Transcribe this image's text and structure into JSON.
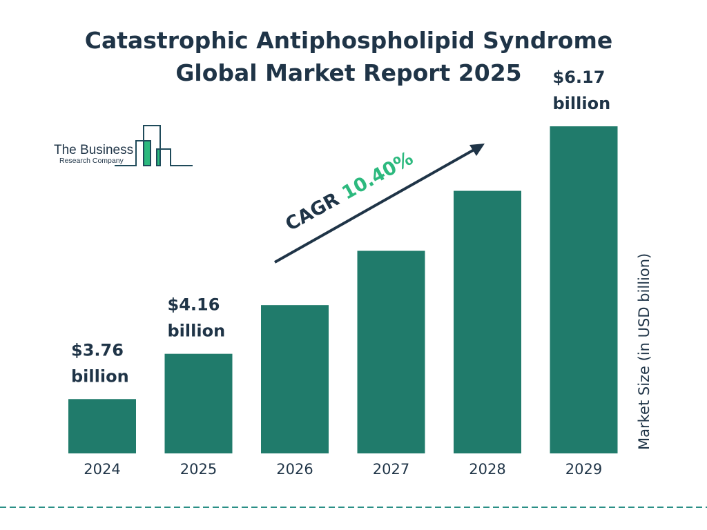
{
  "chart_data": {
    "type": "bar",
    "title": "Catastrophic Antiphospholipid Syndrome Global Market Report 2025",
    "title_lines": [
      "Catastrophic Antiphospholipid Syndrome",
      "Global Market Report 2025"
    ],
    "categories": [
      "2024",
      "2025",
      "2026",
      "2027",
      "2028",
      "2029"
    ],
    "values": [
      3.76,
      4.16,
      4.59,
      5.07,
      5.6,
      6.17
    ],
    "data_labels": [
      {
        "index": 0,
        "value": "$3.76",
        "unit": "billion"
      },
      {
        "index": 1,
        "value": "$4.16",
        "unit": "billion"
      },
      {
        "index": 5,
        "value": "$6.17",
        "unit": "billion"
      }
    ],
    "ylabel": "Market Size (in USD billion)",
    "xlabel": "",
    "annotation": {
      "label": "CAGR",
      "value": "10.40%"
    },
    "grid": false,
    "colors": {
      "bar": "#207b6b",
      "text": "#1f3447",
      "cagr": "#2cb97e",
      "divider": "#2a8f86"
    }
  },
  "logo": {
    "line1": "The Business",
    "line2": "Research Company"
  }
}
